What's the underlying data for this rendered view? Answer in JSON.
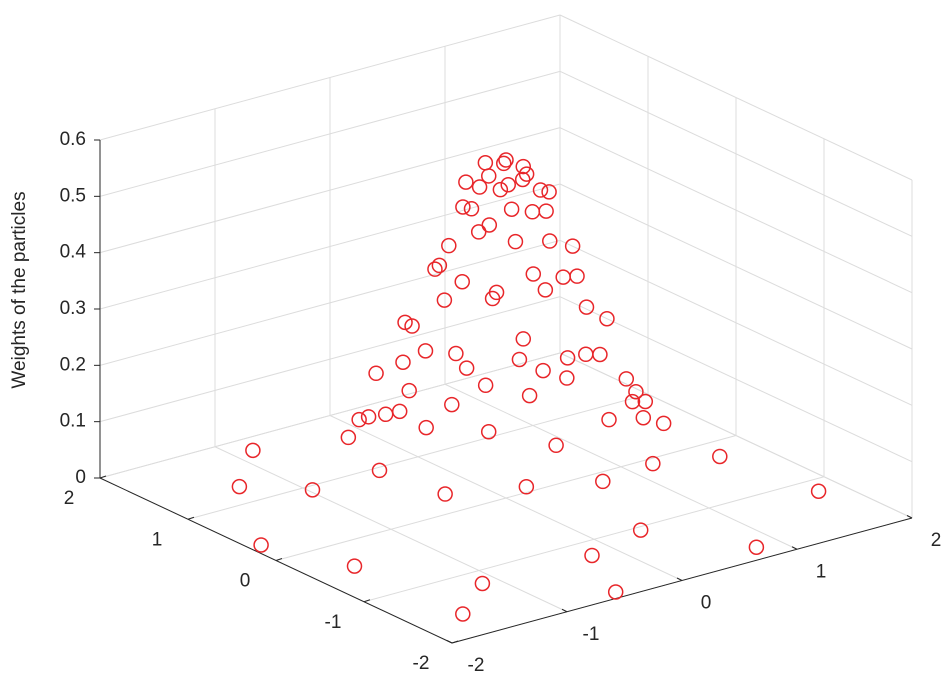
{
  "chart_data": {
    "type": "scatter3d",
    "zlabel": "Weights of the particles",
    "color": "#e8262a",
    "grid": true,
    "xlim": [
      -2,
      2
    ],
    "xticks": [
      -2,
      -1,
      0,
      1,
      2
    ],
    "ylim": [
      -2,
      2
    ],
    "yticks": [
      -2,
      -1,
      0,
      1,
      2
    ],
    "zlim": [
      0,
      0.6
    ],
    "zticks": [
      0,
      0.1,
      0.2,
      0.3,
      0.4,
      0.5,
      0.6
    ],
    "x": [
      0,
      0.15,
      0.08,
      -0.08,
      -0.15,
      -0.08,
      0.08,
      0.3,
      0.26,
      0.15,
      0,
      -0.15,
      -0.26,
      -0.3,
      -0.26,
      -0.15,
      0,
      0.15,
      0.26,
      0.48,
      0.35,
      0.13,
      -0.13,
      -0.35,
      -0.48,
      -0.48,
      -0.35,
      -0.13,
      0.13,
      0.35,
      0.48,
      0.7,
      0.61,
      0.35,
      0,
      -0.35,
      -0.61,
      -0.7,
      -0.61,
      -0.35,
      0,
      0.35,
      0.61,
      0.87,
      0.64,
      0.23,
      -0.23,
      -0.64,
      -0.87,
      -0.87,
      -0.64,
      -0.23,
      0.23,
      0.64,
      0.87,
      1.1,
      0.95,
      0.55,
      0,
      -0.55,
      -0.95,
      -1.1,
      -0.95,
      -0.55,
      0,
      0.55,
      0.95,
      1.5,
      -1.4,
      1.8,
      -1.7,
      0.3,
      -0.4,
      1.2,
      -1.2,
      1.9,
      -0.9,
      0.8,
      -1.9,
      1.4,
      -1.3,
      0.6,
      -0.5,
      1.7,
      -1.6,
      0.1,
      -0.2
    ],
    "y": [
      0,
      0,
      0.13,
      0.13,
      0,
      -0.13,
      -0.13,
      0,
      0.15,
      0.26,
      0.3,
      0.26,
      0.15,
      0,
      -0.15,
      -0.26,
      -0.3,
      -0.26,
      -0.15,
      0.13,
      0.35,
      0.48,
      0.48,
      0.35,
      0.13,
      -0.13,
      -0.35,
      -0.48,
      -0.48,
      -0.35,
      -0.13,
      0,
      0.35,
      0.61,
      0.7,
      0.61,
      0.35,
      0,
      -0.35,
      -0.61,
      -0.7,
      -0.61,
      -0.35,
      0.23,
      0.64,
      0.87,
      0.87,
      0.64,
      0.23,
      -0.23,
      -0.64,
      -0.87,
      -0.87,
      -0.64,
      -0.23,
      0,
      0.55,
      0.95,
      1.1,
      0.95,
      0.55,
      0,
      -0.55,
      -0.95,
      -1.1,
      -0.95,
      -0.55,
      0.4,
      1.2,
      -1.2,
      -0.5,
      1.6,
      -1.5,
      1.3,
      -1.3,
      0.9,
      1.7,
      -1.8,
      0.3,
      -0.6,
      0.5,
      1.4,
      -1.9,
      1.8,
      -1.6,
      -1.4,
      1.3
    ],
    "z": [
      0.6,
      0.58,
      0.58,
      0.59,
      0.58,
      0.57,
      0.58,
      0.53,
      0.54,
      0.52,
      0.53,
      0.55,
      0.52,
      0.53,
      0.51,
      0.54,
      0.53,
      0.52,
      0.54,
      0.42,
      0.41,
      0.43,
      0.42,
      0.4,
      0.43,
      0.42,
      0.41,
      0.44,
      0.42,
      0.4,
      0.43,
      0.3,
      0.31,
      0.29,
      0.3,
      0.28,
      0.32,
      0.3,
      0.29,
      0.31,
      0.3,
      0.28,
      0.31,
      0.19,
      0.2,
      0.18,
      0.19,
      0.21,
      0.18,
      0.19,
      0.2,
      0.17,
      0.19,
      0.2,
      0.18,
      0.11,
      0.12,
      0.1,
      0.11,
      0.1,
      0.12,
      0.11,
      0.1,
      0.12,
      0.11,
      0.1,
      0.12,
      0.03,
      0.01,
      0,
      0.01,
      0.02,
      0.03,
      0.02,
      0.01,
      0,
      0.01,
      0,
      0,
      0.04,
      0.05,
      0.03,
      0,
      0,
      0,
      0.04,
      0.06
    ]
  }
}
